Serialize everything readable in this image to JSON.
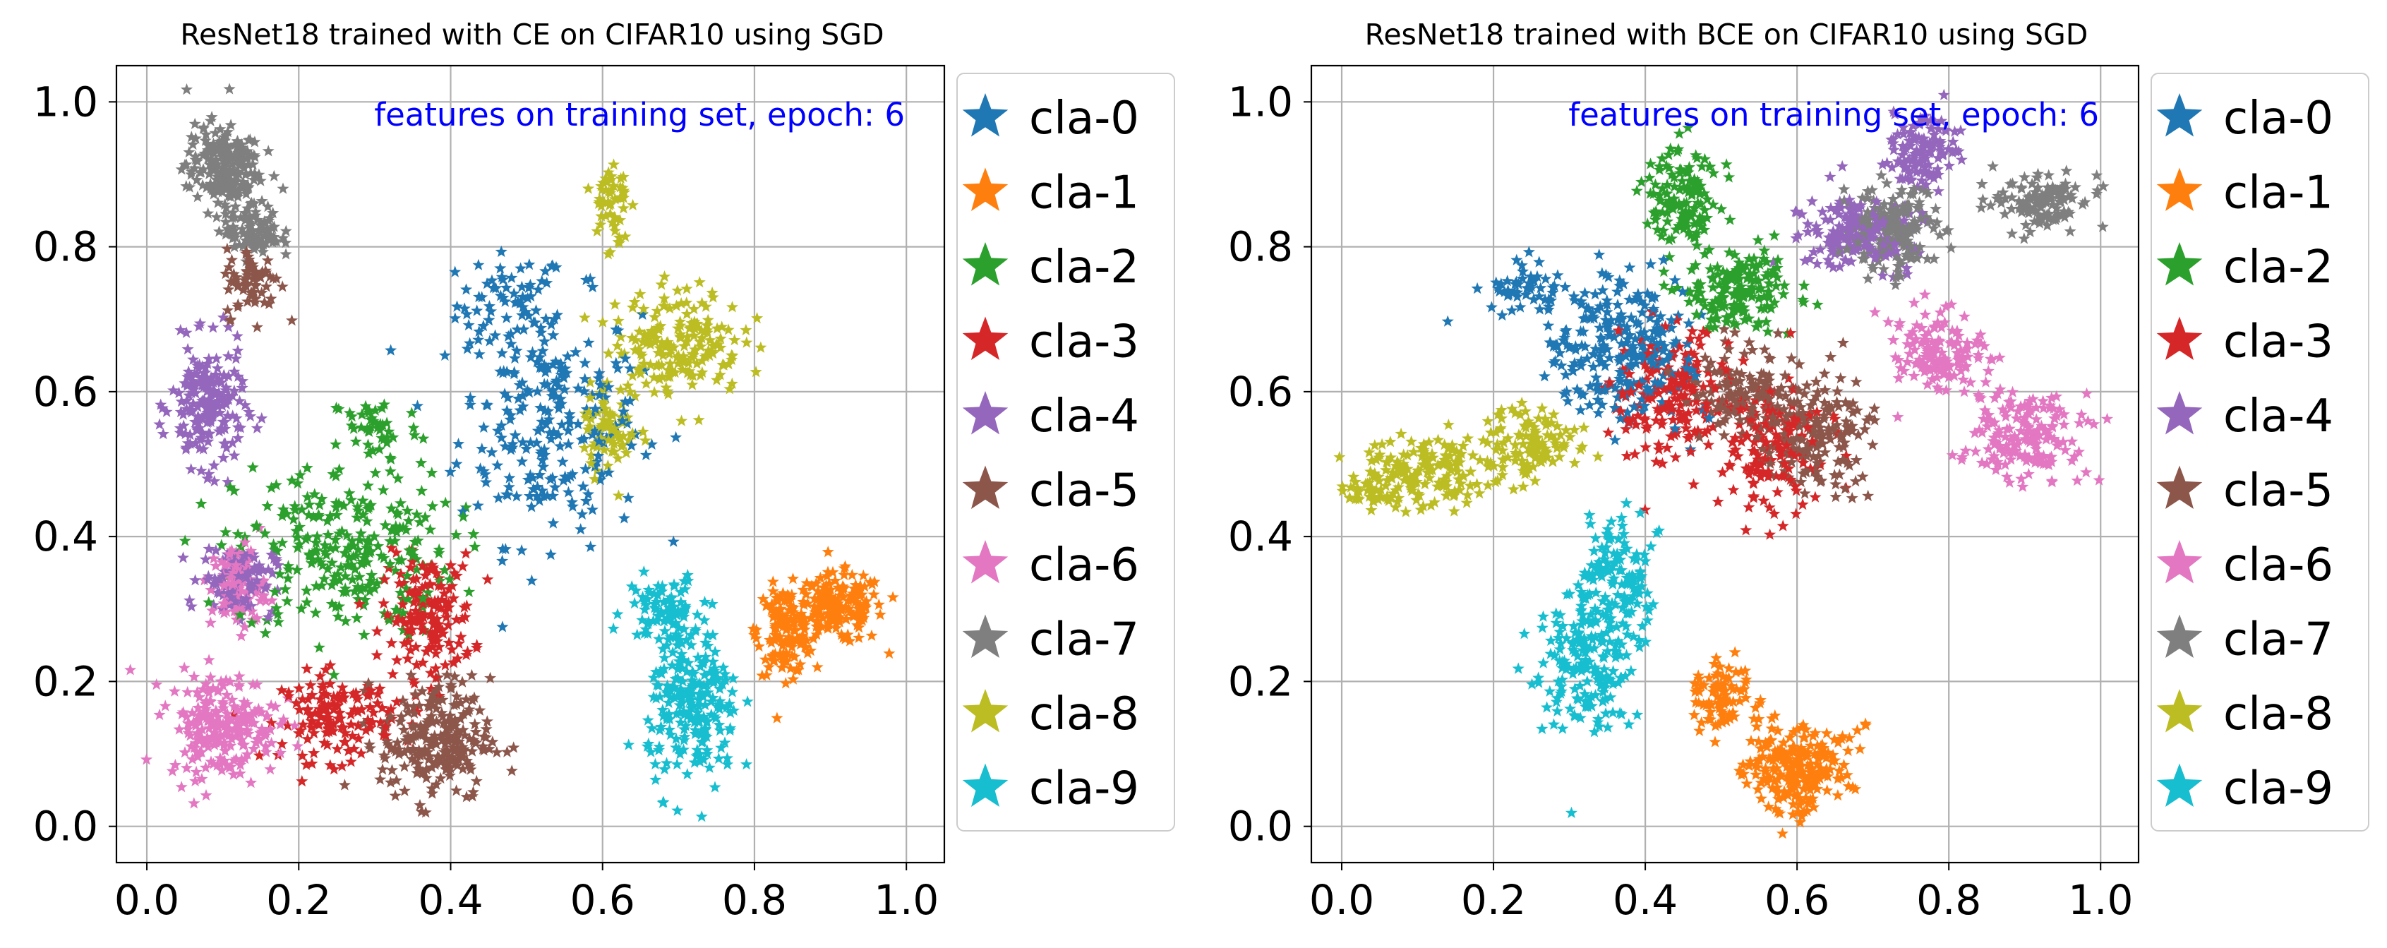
{
  "colors": {
    "cla-0": "#1f77b4",
    "cla-1": "#ff7f0e",
    "cla-2": "#2ca02c",
    "cla-3": "#d62728",
    "cla-4": "#9467bd",
    "cla-5": "#8c564b",
    "cla-6": "#e377c2",
    "cla-7": "#7f7f7f",
    "cla-8": "#bcbd22",
    "cla-9": "#17becf",
    "annotation": "#0000ff",
    "grid": "#b0b0b0"
  },
  "marker": "star",
  "chart_data": [
    {
      "type": "scatter",
      "title": "ResNet18 trained with CE on CIFAR10 using SGD",
      "annotation": "features on training set, epoch:   6",
      "xlabel": "",
      "ylabel": "",
      "xlim": [
        -0.04,
        1.05
      ],
      "ylim": [
        -0.05,
        1.05
      ],
      "xticks": [
        0.0,
        0.2,
        0.4,
        0.6,
        0.8,
        1.0
      ],
      "xtick_labels": [
        "0.0",
        "0.2",
        "0.4",
        "0.6",
        "0.8",
        "1.0"
      ],
      "yticks": [
        0.0,
        0.2,
        0.4,
        0.6,
        0.8,
        1.0
      ],
      "ytick_labels": [
        "0.0",
        "0.2",
        "0.4",
        "0.6",
        "0.8",
        "1.0"
      ],
      "grid": true,
      "legend_position": "outside right",
      "points_per_class": 300,
      "series": [
        {
          "name": "cla-0",
          "clusters": [
            [
              0.48,
              0.72,
              0.06,
              0.06
            ],
            [
              0.53,
              0.56,
              0.1,
              0.14
            ]
          ]
        },
        {
          "name": "cla-1",
          "clusters": [
            [
              0.91,
              0.3,
              0.05,
              0.04
            ],
            [
              0.84,
              0.27,
              0.03,
              0.05
            ]
          ]
        },
        {
          "name": "cla-2",
          "clusters": [
            [
              0.3,
              0.55,
              0.05,
              0.04
            ],
            [
              0.26,
              0.38,
              0.12,
              0.1
            ]
          ]
        },
        {
          "name": "cla-3",
          "clusters": [
            [
              0.37,
              0.29,
              0.05,
              0.07
            ],
            [
              0.25,
              0.15,
              0.06,
              0.05
            ]
          ]
        },
        {
          "name": "cla-4",
          "clusters": [
            [
              0.08,
              0.58,
              0.04,
              0.07
            ],
            [
              0.12,
              0.34,
              0.04,
              0.04
            ]
          ]
        },
        {
          "name": "cla-5",
          "clusters": [
            [
              0.38,
              0.12,
              0.06,
              0.07
            ],
            [
              0.14,
              0.75,
              0.03,
              0.04
            ]
          ]
        },
        {
          "name": "cla-6",
          "clusters": [
            [
              0.1,
              0.14,
              0.06,
              0.06
            ],
            [
              0.12,
              0.33,
              0.03,
              0.05
            ]
          ]
        },
        {
          "name": "cla-7",
          "clusters": [
            [
              0.1,
              0.91,
              0.04,
              0.05
            ],
            [
              0.14,
              0.82,
              0.03,
              0.03
            ]
          ]
        },
        {
          "name": "cla-8",
          "clusters": [
            [
              0.7,
              0.67,
              0.07,
              0.06
            ],
            [
              0.61,
              0.86,
              0.02,
              0.06
            ],
            [
              0.61,
              0.55,
              0.03,
              0.05
            ]
          ]
        },
        {
          "name": "cla-9",
          "clusters": [
            [
              0.72,
              0.16,
              0.05,
              0.09
            ],
            [
              0.68,
              0.3,
              0.04,
              0.04
            ]
          ]
        }
      ]
    },
    {
      "type": "scatter",
      "title": "ResNet18 trained with BCE on CIFAR10 using SGD",
      "annotation": "features on training set, epoch:   6",
      "xlabel": "",
      "ylabel": "",
      "xlim": [
        -0.04,
        1.05
      ],
      "ylim": [
        -0.05,
        1.05
      ],
      "xticks": [
        0.0,
        0.2,
        0.4,
        0.6,
        0.8,
        1.0
      ],
      "xtick_labels": [
        "0.0",
        "0.2",
        "0.4",
        "0.6",
        "0.8",
        "1.0"
      ],
      "yticks": [
        0.0,
        0.2,
        0.4,
        0.6,
        0.8,
        1.0
      ],
      "ytick_labels": [
        "0.0",
        "0.2",
        "0.4",
        "0.6",
        "0.8",
        "1.0"
      ],
      "grid": true,
      "legend_position": "outside right",
      "points_per_class": 300,
      "series": [
        {
          "name": "cla-0",
          "clusters": [
            [
              0.24,
              0.74,
              0.04,
              0.03
            ],
            [
              0.37,
              0.66,
              0.08,
              0.08
            ]
          ]
        },
        {
          "name": "cla-1",
          "clusters": [
            [
              0.6,
              0.08,
              0.06,
              0.05
            ],
            [
              0.5,
              0.18,
              0.03,
              0.04
            ]
          ]
        },
        {
          "name": "cla-2",
          "clusters": [
            [
              0.45,
              0.87,
              0.04,
              0.06
            ],
            [
              0.52,
              0.74,
              0.06,
              0.05
            ]
          ]
        },
        {
          "name": "cla-3",
          "clusters": [
            [
              0.56,
              0.52,
              0.06,
              0.07
            ],
            [
              0.44,
              0.6,
              0.06,
              0.08
            ]
          ]
        },
        {
          "name": "cla-4",
          "clusters": [
            [
              0.76,
              0.93,
              0.04,
              0.04
            ],
            [
              0.68,
              0.82,
              0.06,
              0.04
            ]
          ]
        },
        {
          "name": "cla-5",
          "clusters": [
            [
              0.62,
              0.55,
              0.06,
              0.07
            ],
            [
              0.53,
              0.6,
              0.06,
              0.05
            ]
          ]
        },
        {
          "name": "cla-6",
          "clusters": [
            [
              0.9,
              0.54,
              0.06,
              0.05
            ],
            [
              0.79,
              0.65,
              0.05,
              0.05
            ]
          ]
        },
        {
          "name": "cla-7",
          "clusters": [
            [
              0.92,
              0.86,
              0.05,
              0.03
            ],
            [
              0.73,
              0.82,
              0.05,
              0.05
            ]
          ]
        },
        {
          "name": "cla-8",
          "clusters": [
            [
              0.12,
              0.49,
              0.08,
              0.04
            ],
            [
              0.25,
              0.53,
              0.05,
              0.04
            ],
            [
              0.04,
              0.46,
              0.03,
              0.02
            ]
          ]
        },
        {
          "name": "cla-9",
          "clusters": [
            [
              0.32,
              0.22,
              0.05,
              0.07
            ],
            [
              0.36,
              0.34,
              0.04,
              0.07
            ]
          ]
        }
      ]
    }
  ]
}
